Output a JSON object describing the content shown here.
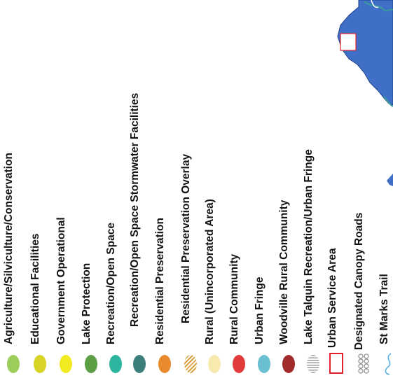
{
  "legend": {
    "items": [
      {
        "label": "Agriculture/Silviculture/Conservation",
        "symbol": "ellipse",
        "color": "#9ccc5a"
      },
      {
        "label": "Educational Facilities",
        "symbol": "ellipse",
        "color": "#d7d327"
      },
      {
        "label": "Government Operational",
        "symbol": "ellipse",
        "color": "#f2ea20"
      },
      {
        "label": "Lake Protection",
        "symbol": "ellipse",
        "color": "#5c9e43"
      },
      {
        "label": "Recreation/Open Space",
        "symbol": "ellipse",
        "color": "#2eb5a0"
      },
      {
        "label": "Recreation/Open Space Stormwater Facilities",
        "symbol": "ellipse",
        "color": "#3c7e7a"
      },
      {
        "label": "Residential Preservation",
        "symbol": "ellipse",
        "color": "#e98a2e"
      },
      {
        "label": "Residential Preservation Overlay",
        "symbol": "hatched-ellipse",
        "color": "#d9a441"
      },
      {
        "label": "Rural (Unincorporated Area)",
        "symbol": "ellipse",
        "color": "#f7e9b0"
      },
      {
        "label": "Rural Community",
        "symbol": "ellipse",
        "color": "#e03a3a"
      },
      {
        "label": "Urban Fringe",
        "symbol": "ellipse",
        "color": "#6bbfd2"
      },
      {
        "label": "Woodville Rural Community",
        "symbol": "ellipse",
        "color": "#a22b2b"
      },
      {
        "label": "Lake Talquin Recreation/Urban Fringe",
        "symbol": "striped-ellipse",
        "color": "#9a9a9a"
      },
      {
        "label": "Urban Service Area",
        "symbol": "outline-rect",
        "color": "#e2222a"
      },
      {
        "label": "Designated Canopy Roads",
        "symbol": "canopy",
        "color": "#8a8a8a"
      },
      {
        "label": "St Marks Trail",
        "symbol": "wavy-line",
        "color": "#5ab0e6"
      }
    ]
  },
  "map": {
    "water_color": "#3f6fc7",
    "land_color": "#ffffff",
    "road_color": "#3a9a9a"
  }
}
